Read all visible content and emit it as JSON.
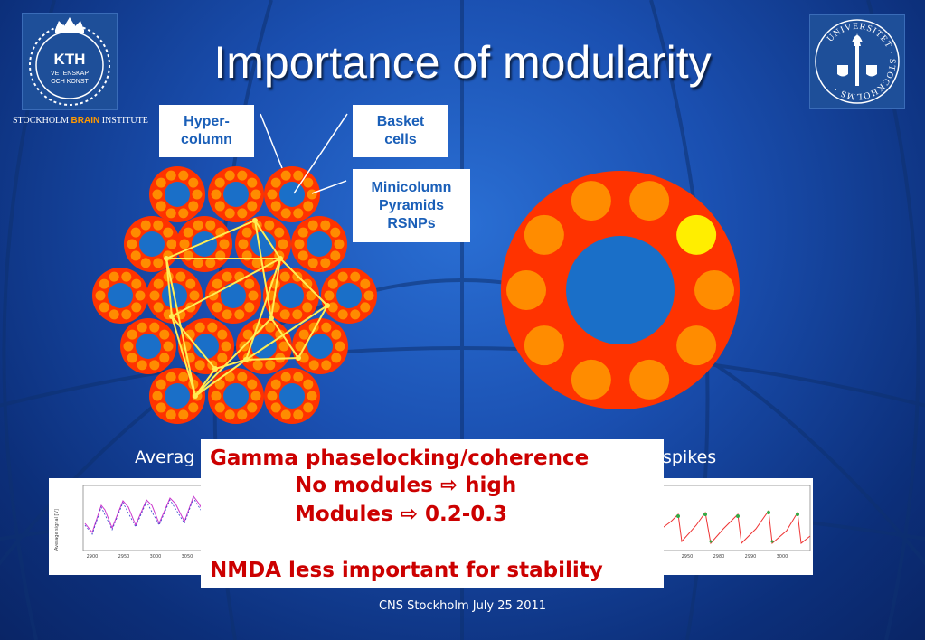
{
  "slide": {
    "title": "Importance of modularity",
    "footer": "CNS Stockholm July 25 2011",
    "colors": {
      "background": "#1a4fb0",
      "hypercolumn": "#ff3300",
      "minicolumn": "#ff8c00",
      "core": "#1a6fc8",
      "highlight": "#ffee00",
      "connection": "#ffee55",
      "emphasis": "#cc0000",
      "label_text": "#1a5fb8"
    }
  },
  "logos": {
    "kth": {
      "lines": [
        "KTH",
        "VETENSKAP",
        "OCH KONST"
      ]
    },
    "su": {
      "ring_text": "UNIVERSITET · STOCKHOLMS ·"
    },
    "institute": {
      "prefix": "STOCKHOLM",
      "brain": "BRAIN",
      "suffix": "INSTITUTE"
    }
  },
  "labels": {
    "hypercolumn": {
      "line1": "Hyper-",
      "line2": "column"
    },
    "basket": {
      "line1": "Basket",
      "line2": "cells"
    },
    "minicolumn": {
      "line1": "Minicolumn",
      "line2": "Pyramids",
      "line3": "RSNPs"
    }
  },
  "captions": {
    "left": "Averag",
    "right": "spikes"
  },
  "callout": {
    "line1": "Gamma phaselocking/coherence",
    "line2_text": "No modules",
    "line2_value": "high",
    "line3_text": "Modules",
    "line3_value": "0.2-0.3",
    "line4": "NMDA less important for stability",
    "arrow_icon": "⇨"
  },
  "plots": {
    "left": {
      "ylabel": "Average signal [V]",
      "xticks": [
        "2900",
        "2950",
        "3000",
        "3050"
      ]
    },
    "right": {
      "xticks": [
        "2950",
        "2980",
        "2990",
        "3000"
      ]
    }
  }
}
